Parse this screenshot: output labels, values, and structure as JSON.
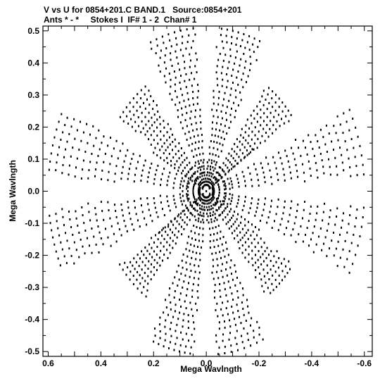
{
  "header": {
    "line1": "V vs U for 0854+201.C BAND.1   Source:0854+201",
    "line2": "Ants * - *     Stokes I  IF# 1 - 2  Chan# 1"
  },
  "chart_data": {
    "type": "scatter",
    "title": "V vs U for 0854+201.C BAND.1   Source:0854+201",
    "subtitle": "Ants * - *     Stokes I  IF# 1 - 2  Chan# 1",
    "xlabel": "Mega Wavlngth",
    "ylabel": "Mega Wavlngth",
    "xlim": [
      0.62,
      -0.63
    ],
    "ylim": [
      -0.515,
      0.515
    ],
    "x_reversed": true,
    "x_ticks": [
      0.6,
      0.4,
      0.2,
      0.0,
      -0.2,
      -0.4,
      -0.6
    ],
    "x_tick_labels": [
      "0.6",
      "0.4",
      "0.2",
      "0.0",
      "-0.2",
      "-0.4",
      "-0.6"
    ],
    "y_ticks": [
      0.5,
      0.4,
      0.3,
      0.2,
      0.1,
      0.0,
      -0.1,
      -0.2,
      -0.3,
      -0.4,
      -0.5
    ],
    "y_tick_labels": [
      "0.5",
      "0.4",
      "0.3",
      "0.2",
      "0.1",
      "0.0",
      "-0.1",
      "-0.2",
      "-0.3",
      "-0.4",
      "-0.5"
    ],
    "grid": false,
    "marker_color": "#000000",
    "arms": [
      {
        "angle_deg": 75,
        "length": 0.51,
        "tracks": 26
      },
      {
        "angle_deg": 105,
        "length": 0.51,
        "tracks": 26
      },
      {
        "angle_deg": 135,
        "length": 0.4,
        "tracks": 22
      },
      {
        "angle_deg": 165,
        "length": 0.6,
        "tracks": 24
      },
      {
        "angle_deg": 195,
        "length": 0.6,
        "tracks": 24
      },
      {
        "angle_deg": 225,
        "length": 0.4,
        "tracks": 22
      },
      {
        "angle_deg": 255,
        "length": 0.51,
        "tracks": 26
      },
      {
        "angle_deg": 285,
        "length": 0.51,
        "tracks": 26
      },
      {
        "angle_deg": 315,
        "length": 0.4,
        "tracks": 22
      },
      {
        "angle_deg": 345,
        "length": 0.6,
        "tracks": 24
      },
      {
        "angle_deg": 15,
        "length": 0.6,
        "tracks": 24
      },
      {
        "angle_deg": 45,
        "length": 0.4,
        "tracks": 22
      }
    ],
    "diagonal_tracks": [
      {
        "from": [
          0.2,
          0.12
        ],
        "to": [
          -0.2,
          -0.12
        ]
      },
      {
        "from": [
          -0.18,
          0.13
        ],
        "to": [
          0.18,
          -0.13
        ]
      }
    ]
  }
}
